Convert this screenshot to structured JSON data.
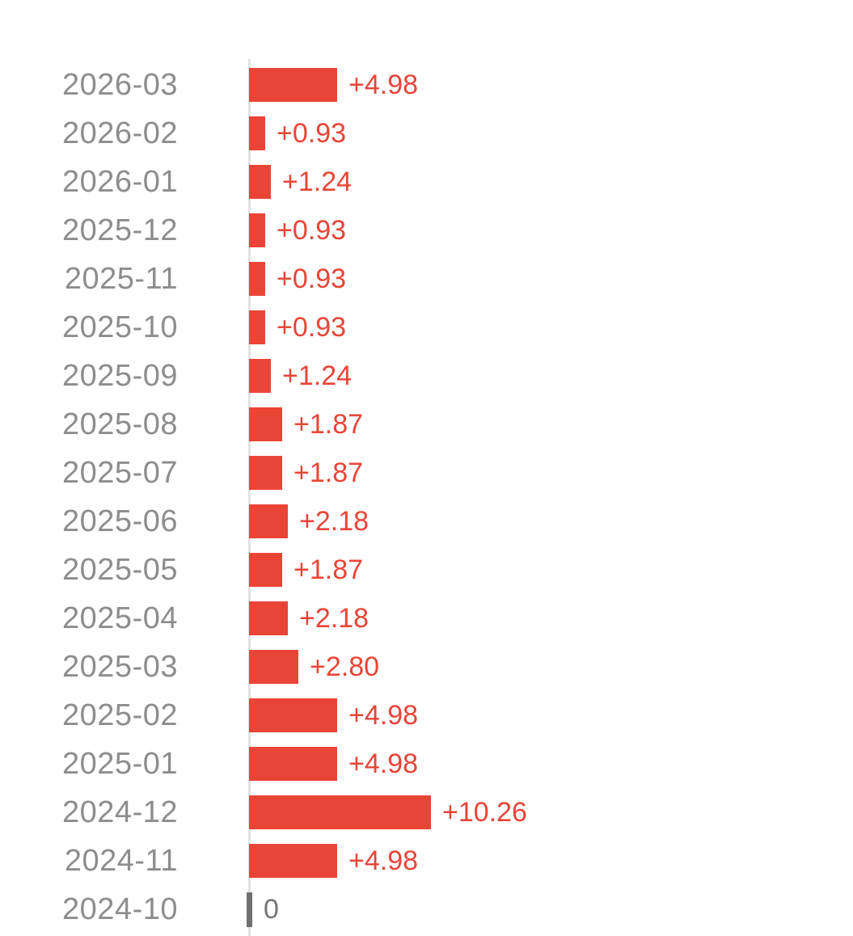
{
  "chart_data": {
    "type": "bar",
    "orientation": "horizontal",
    "title": "",
    "xlabel": "",
    "ylabel": "",
    "categories": [
      "2026-03",
      "2026-02",
      "2026-01",
      "2025-12",
      "2025-11",
      "2025-10",
      "2025-09",
      "2025-08",
      "2025-07",
      "2025-06",
      "2025-05",
      "2025-04",
      "2025-03",
      "2025-02",
      "2025-01",
      "2024-12",
      "2024-11",
      "2024-10"
    ],
    "values": [
      4.98,
      0.93,
      1.24,
      0.93,
      0.93,
      0.93,
      1.24,
      1.87,
      1.87,
      2.18,
      1.87,
      2.18,
      2.8,
      4.98,
      4.98,
      10.26,
      4.98,
      0
    ],
    "value_labels": [
      "+4.98",
      "+0.93",
      "+1.24",
      "+0.93",
      "+0.93",
      "+0.93",
      "+1.24",
      "+1.87",
      "+1.87",
      "+2.18",
      "+1.87",
      "+2.18",
      "+2.80",
      "+4.98",
      "+4.98",
      "+10.26",
      "+4.98",
      "0"
    ],
    "zero_label": "0",
    "xlim": [
      0,
      10.26
    ],
    "grid": false,
    "legend": "none",
    "baseline": "left vertical zero-axis line"
  },
  "colors": {
    "background": "#ffffff",
    "bar": "#e94537",
    "value_text": "#e94537",
    "category_text": "#8d8d8d",
    "axis_line": "#e2e2e2",
    "zero_tick": "#6f6f6f",
    "zero_value_text": "#757575"
  }
}
